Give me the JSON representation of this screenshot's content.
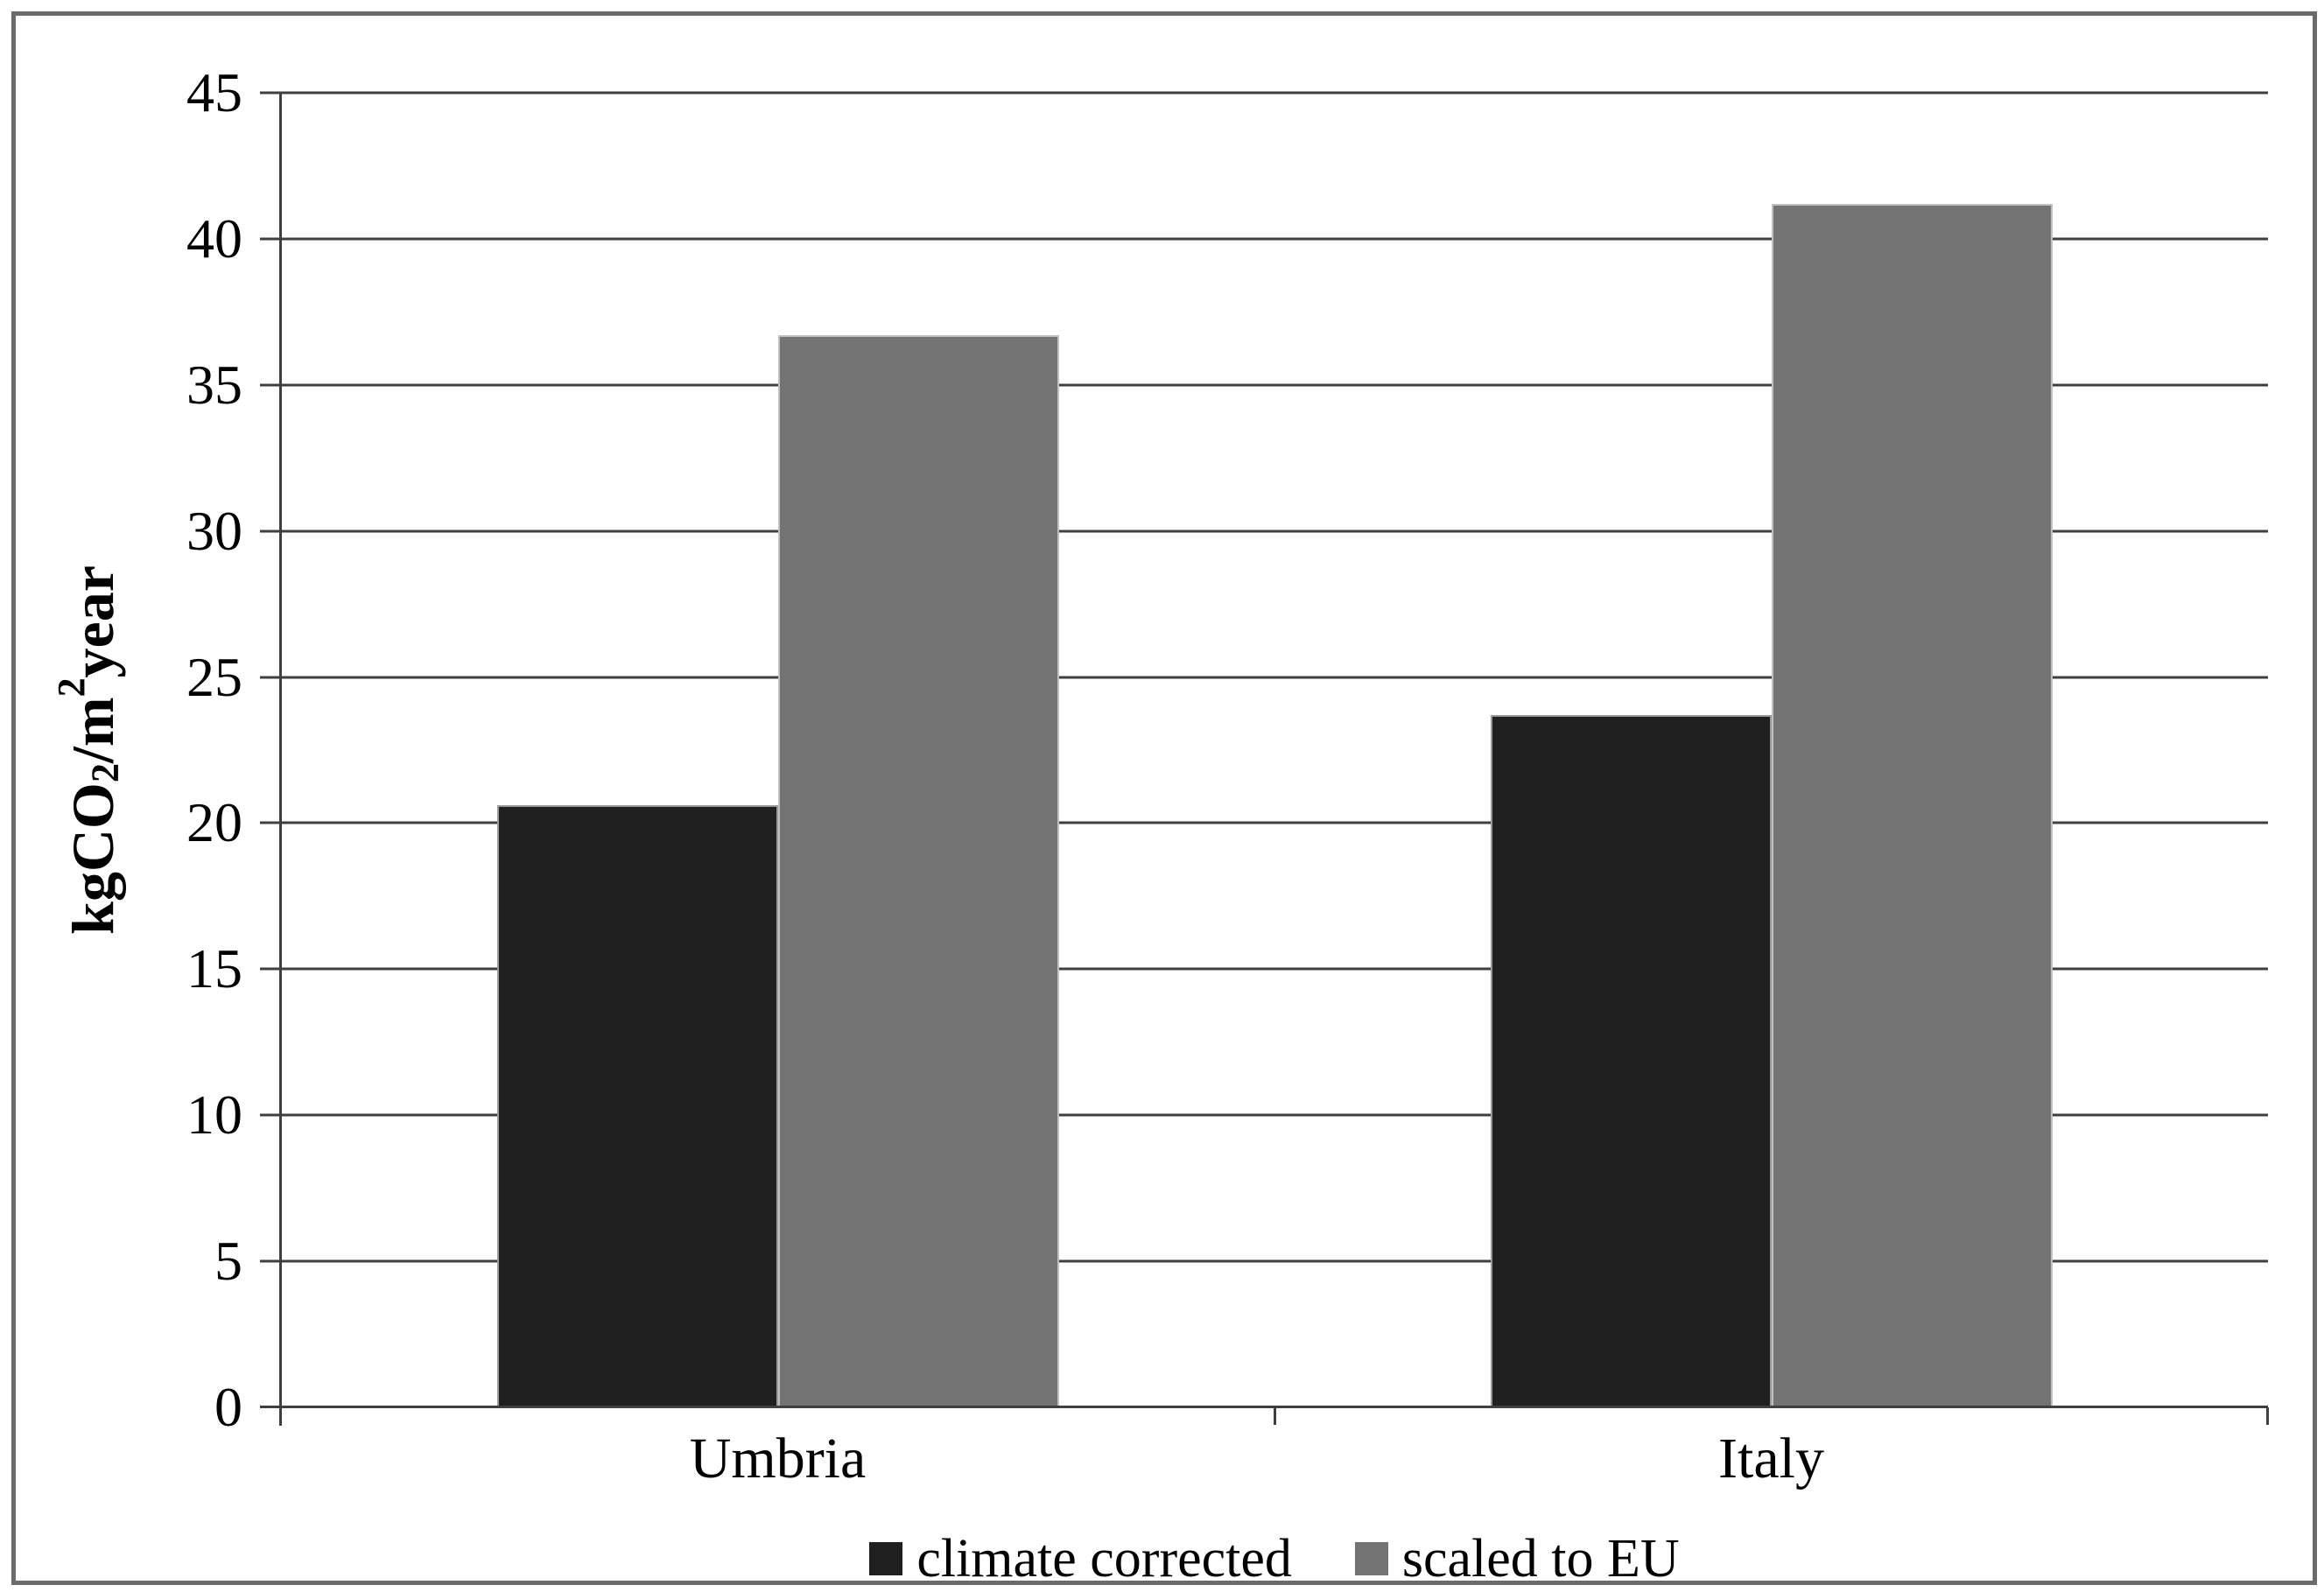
{
  "chart_data": {
    "type": "bar",
    "title": "",
    "categories": [
      "Umbria",
      "Italy"
    ],
    "series": [
      {
        "name": "climate corrected",
        "color": "#202020",
        "values": [
          20.6,
          23.7
        ]
      },
      {
        "name": "scaled to EU",
        "color": "#737373",
        "values": [
          36.7,
          41.2
        ]
      }
    ],
    "xlabel": "",
    "ylabel": "kgCO2/m2year",
    "ylabel_parts": {
      "prefix": "kgCO",
      "sub": "2",
      "mid": "/m",
      "sup": "2",
      "suffix": "year"
    },
    "ylim": [
      0,
      45
    ],
    "yticks": [
      0,
      5,
      10,
      15,
      20,
      25,
      30,
      35,
      40,
      45
    ],
    "grid": true,
    "legend_position": "bottom"
  },
  "colors": {
    "background": "#ffffff",
    "frame_border": "#6b6b6b",
    "gridline": "#3f3f3f",
    "text": "#000000",
    "series_climate_corrected": "#202020",
    "series_scaled_to_eu": "#737373"
  }
}
